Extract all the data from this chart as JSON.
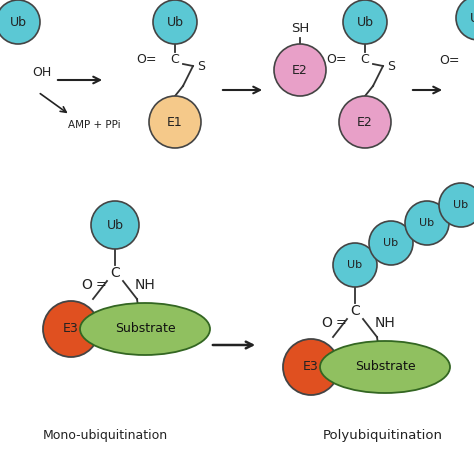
{
  "ub_color": "#5BC8D4",
  "e1_color": "#F5C98A",
  "e2_color": "#E8A0C8",
  "e3_color": "#E05020",
  "substrate_color": "#90C060",
  "bg_color": "#FFFFFF",
  "text_color": "#222222",
  "bond_color": "#333333",
  "labels": {
    "ub": "Ub",
    "e1": "E1",
    "e2": "E2",
    "e3": "E3",
    "substrate": "Substrate",
    "mono": "Mono-ubiquitination",
    "poly": "Polyubiquitination",
    "amp_ppi": "AMP + PPi",
    "oh": "OH",
    "sh": "SH",
    "C": "C",
    "O_eq": "O",
    "eq": "=",
    "S": "S",
    "NH": "NH"
  }
}
